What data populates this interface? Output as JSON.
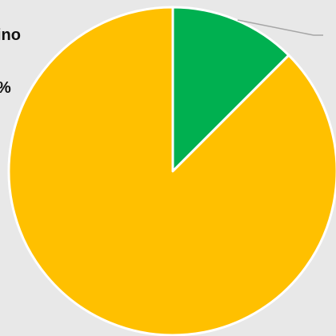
{
  "chart_data": {
    "type": "pie",
    "start_angle_deg": 0,
    "direction": "clockwise",
    "slices": [
      {
        "name": "",
        "value": 12.5,
        "color": "#00b050"
      },
      {
        "name": "",
        "value": 87.5,
        "color": "#ffc000"
      }
    ],
    "labels": {
      "line_1": "ino",
      "line_2": "%"
    },
    "leader_line": true,
    "background": "#e8e8e8"
  }
}
